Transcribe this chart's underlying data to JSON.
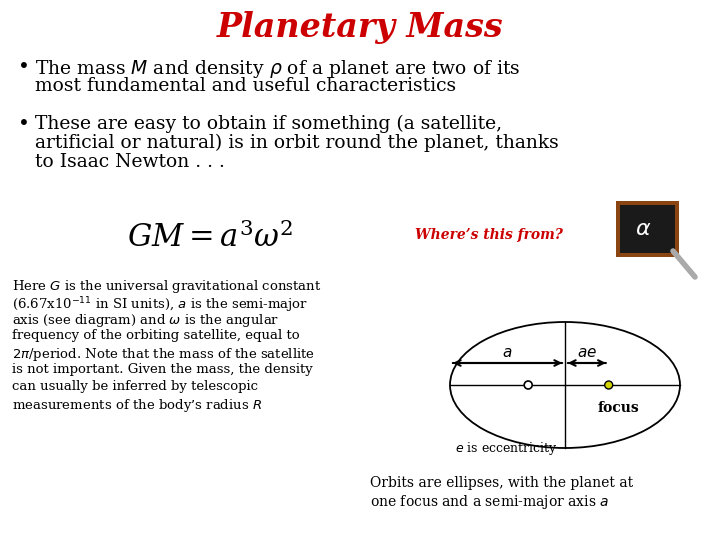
{
  "title": "Planetary Mass",
  "title_color": "#cc0000",
  "title_fontsize": 24,
  "bg_color": "#ffffff",
  "bullet1_line1": "The mass $M$ and density $\\rho$ of a planet are two of its",
  "bullet1_line2": "most fundamental and useful characteristics",
  "bullet2_line1": "These are easy to obtain if something (a satellite,",
  "bullet2_line2": "artificial or natural) is in orbit round the planet, thanks",
  "bullet2_line3": "to Isaac Newton . . .",
  "formula": "$GM = a^3\\omega^2$",
  "wheres_this_from": "Where’s this from?",
  "wheres_color": "#cc0000",
  "here_text_line1": "Here $G$ is the universal gravitational constant",
  "here_text_line2": "(6.67x10$^{-11}$ in SI units), $a$ is the semi-major",
  "here_text_line3": "axis (see diagram) and $\\omega$ is the angular",
  "here_text_line4": "frequency of the orbiting satellite, equal to",
  "here_text_line5": "$2\\pi$/period. Note that the mass of the satellite",
  "here_text_line6": "is not important. Given the mass, the density",
  "here_text_line7": "can usually be inferred by telescopic",
  "here_text_line8": "measurements of the body’s radius $R$",
  "orbits_text_line1": "Orbits are ellipses, with the planet at",
  "orbits_text_line2": "one focus and a semi-major axis $a$",
  "e_is_text": "$e$ is eccentricity",
  "focus_text": "focus",
  "blackboard_bg": "#1a1a1a",
  "blackboard_border": "#8B4513",
  "chalk_color": "#ffffff"
}
